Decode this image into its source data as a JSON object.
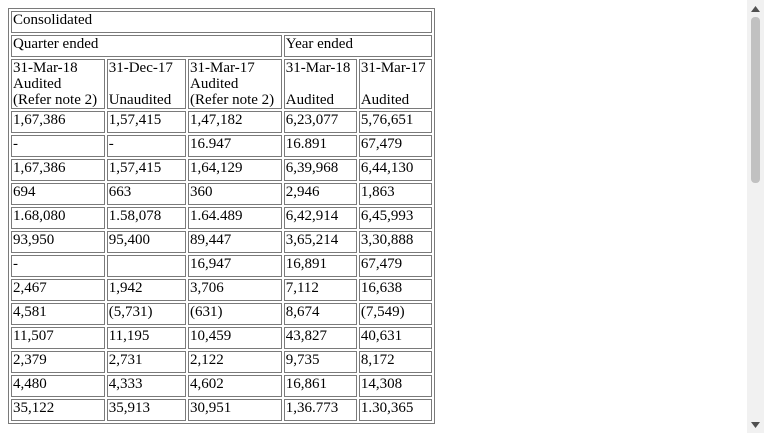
{
  "table": {
    "title": "Consolidated",
    "groups": [
      "Quarter ended",
      "Year ended"
    ],
    "columns": [
      {
        "date": "31-Mar-18",
        "status1": "Audited",
        "status2": "(Refer note 2)"
      },
      {
        "date": "31-Dec-17",
        "status1": "",
        "status2": "Unaudited"
      },
      {
        "date": "31-Mar-17",
        "status1": "Audited",
        "status2": "(Refer note 2)"
      },
      {
        "date": "31-Mar-18",
        "status1": "",
        "status2": "Audited"
      },
      {
        "date": "31-Mar-17",
        "status1": "",
        "status2": "Audited"
      }
    ],
    "rows": [
      [
        "1,67,386",
        "1,57,415",
        "1,47,182",
        "6,23,077",
        "5,76,651"
      ],
      [
        "-",
        "-",
        "16.947",
        "16.891",
        "67,479"
      ],
      [
        "1,67,386",
        "1,57,415",
        "1,64,129",
        "6,39,968",
        "6,44,130"
      ],
      [
        "694",
        "663",
        "360",
        "2,946",
        "1,863"
      ],
      [
        "1.68,080",
        "1.58,078",
        "1.64.489",
        "6,42,914",
        "6,45,993"
      ],
      [
        "93,950",
        "95,400",
        "89,447",
        "3,65,214",
        "3,30,888"
      ],
      [
        "-",
        "",
        "16,947",
        "16,891",
        "67,479"
      ],
      [
        "2,467",
        "1,942",
        "3,706",
        "7,112",
        "16,638"
      ],
      [
        "4,581",
        "(5,731)",
        "(631)",
        "8,674",
        "(7,549)"
      ],
      [
        "11,507",
        "11,195",
        "10,459",
        "43,827",
        "40,631"
      ],
      [
        "2,379",
        "2,731",
        "2,122",
        "9,735",
        "8,172"
      ],
      [
        "4,480",
        "4,333",
        "4,602",
        "16,861",
        "14,308"
      ],
      [
        "35,122",
        "35,913",
        "30,951",
        "1,36.773",
        "1.30,365"
      ]
    ]
  },
  "scrollbar": {
    "up_icon": "triangle-up-icon",
    "down_icon": "triangle-down-icon"
  }
}
